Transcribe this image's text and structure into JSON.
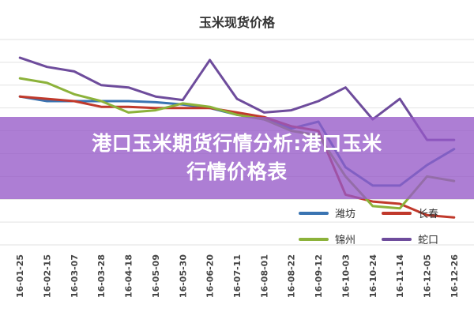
{
  "banner": {
    "line1": "港口玉米期货行情分析:港口玉米",
    "line2": "行情价格表"
  },
  "chart_data": {
    "type": "line",
    "title": "玉米现货价格",
    "xlabel": "",
    "ylabel": "",
    "grid": true,
    "legend_position": "bottom-right",
    "x": [
      "16-01-25",
      "16-02-15",
      "16-03-07",
      "16-03-28",
      "16-04-18",
      "16-05-09",
      "16-05-30",
      "16-06-20",
      "16-07-11",
      "16-08-01",
      "16-08-22",
      "16-09-12",
      "16-10-03",
      "16-10-24",
      "16-11-14",
      "16-12-05",
      "16-12-26"
    ],
    "ylim": [
      1300,
      2200
    ],
    "series": [
      {
        "name": "潍坊",
        "color": "#3a74b2",
        "values": [
          1950,
          1930,
          1930,
          1930,
          1930,
          1925,
          1915,
          1900,
          1870,
          1850,
          1810,
          1840,
          1640,
          1560,
          1560,
          1650,
          1720
        ]
      },
      {
        "name": "长春",
        "color": "#c0392b",
        "values": [
          1950,
          1940,
          1930,
          1905,
          1905,
          1900,
          1900,
          1900,
          1880,
          1860,
          1820,
          1800,
          1520,
          1490,
          1480,
          1430,
          1420
        ]
      },
      {
        "name": "锦州",
        "color": "#8cb23a",
        "values": [
          2030,
          2010,
          1960,
          1930,
          1880,
          1890,
          1920,
          1905,
          1870,
          1850,
          1800,
          1780,
          1600,
          1470,
          1460,
          1600,
          1580
        ]
      },
      {
        "name": "蛇口",
        "color": "#6e4c9c",
        "values": [
          2120,
          2080,
          2060,
          2000,
          1990,
          1950,
          1935,
          2110,
          1940,
          1880,
          1890,
          1930,
          1990,
          1850,
          1940,
          1760,
          1760
        ]
      }
    ]
  }
}
